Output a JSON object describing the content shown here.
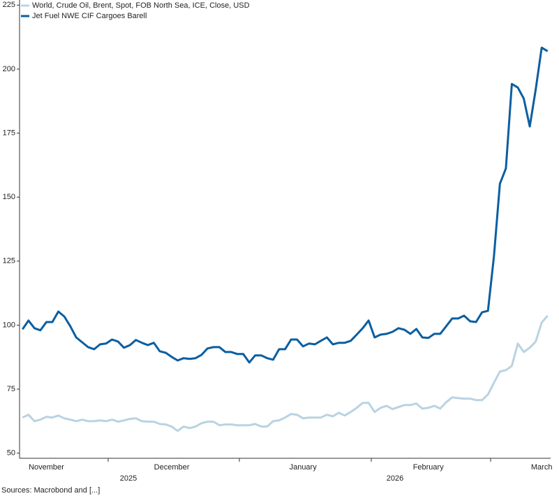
{
  "chart_data": {
    "type": "line",
    "categories": [
      null,
      null,
      null,
      null,
      "November",
      null,
      null,
      null,
      null,
      null,
      null,
      null,
      null,
      null,
      null,
      null,
      null,
      null,
      null,
      null,
      null,
      null,
      null,
      null,
      null,
      "December",
      null,
      null,
      null,
      null,
      null,
      null,
      null,
      null,
      null,
      null,
      null,
      null,
      null,
      null,
      null,
      null,
      null,
      null,
      null,
      null,
      null,
      "January",
      null,
      null,
      null,
      null,
      null,
      null,
      null,
      null,
      null,
      null,
      null,
      null,
      null,
      null,
      null,
      null,
      null,
      null,
      null,
      null,
      "February",
      null,
      null,
      null,
      null,
      null,
      null,
      null,
      null,
      null,
      null,
      null,
      null,
      null,
      null,
      null,
      null,
      null,
      null,
      "March",
      null
    ],
    "x_group_labels": [
      "2025",
      "2026"
    ],
    "series": [
      {
        "name": "World, Crude Oil, Brent, Spot, FOB North Sea, ICE, Close, USD",
        "color": "#b9d3e2",
        "width": 3,
        "values": [
          63.9,
          65,
          62.5,
          63.1,
          64.2,
          63.9,
          64.7,
          63.6,
          63.1,
          62.5,
          63.1,
          62.5,
          62.5,
          62.8,
          62.5,
          63.1,
          62.3,
          62.8,
          63.4,
          63.6,
          62.5,
          62.3,
          62.3,
          61.4,
          61.2,
          60.4,
          58.7,
          60.4,
          59.8,
          60.4,
          61.7,
          62.3,
          62.3,
          60.9,
          61.2,
          61.2,
          60.9,
          60.9,
          60.9,
          61.4,
          60.4,
          60.4,
          62.5,
          62.8,
          63.9,
          65.3,
          65,
          63.6,
          63.9,
          63.9,
          63.9,
          65,
          64.4,
          65.8,
          64.7,
          66.1,
          67.7,
          69.6,
          69.6,
          66.1,
          67.7,
          68.5,
          67.2,
          68,
          68.8,
          68.8,
          69.4,
          67.4,
          67.7,
          68.5,
          67.4,
          69.9,
          71.8,
          71.5,
          71.3,
          71.3,
          70.7,
          70.7,
          72.9,
          77.5,
          81.9,
          82.4,
          84.1,
          92.8,
          89.5,
          91.2,
          93.6,
          101,
          103.7
        ]
      },
      {
        "name": "Jet Fuel NWE CIF Cargoes Barell",
        "color": "#0b5ea0",
        "width": 3,
        "values": [
          98.4,
          101.8,
          98.8,
          98,
          101.2,
          101.2,
          105.3,
          103.4,
          99.6,
          95.2,
          93.3,
          91.4,
          90.6,
          92.5,
          92.8,
          94.4,
          93.6,
          91.2,
          92.2,
          94.2,
          93.1,
          92.2,
          93.1,
          89.8,
          89.2,
          87.6,
          86.2,
          87.1,
          86.8,
          87.1,
          88.4,
          90.9,
          91.4,
          91.4,
          89.5,
          89.5,
          88.7,
          88.7,
          85.4,
          88.2,
          88.2,
          87.1,
          86.5,
          90.6,
          90.6,
          94.4,
          94.4,
          91.7,
          92.8,
          92.5,
          93.9,
          95.2,
          92.5,
          93.1,
          93.1,
          93.9,
          96.3,
          98.8,
          101.8,
          95.2,
          96.3,
          96.6,
          97.4,
          98.8,
          98.2,
          96.6,
          98.5,
          95.2,
          95,
          96.6,
          96.6,
          99.6,
          102.6,
          102.6,
          103.7,
          101.5,
          101.2,
          105,
          105.6,
          126.9,
          155.2,
          161.2,
          194.2,
          192.8,
          188.5,
          177.6,
          192,
          208.4,
          207
        ]
      }
    ],
    "ylim": [
      48,
      227
    ],
    "yticks": [
      50,
      75,
      100,
      125,
      150,
      175,
      200,
      225
    ],
    "source": "Sources: Macrobond and [...]"
  }
}
